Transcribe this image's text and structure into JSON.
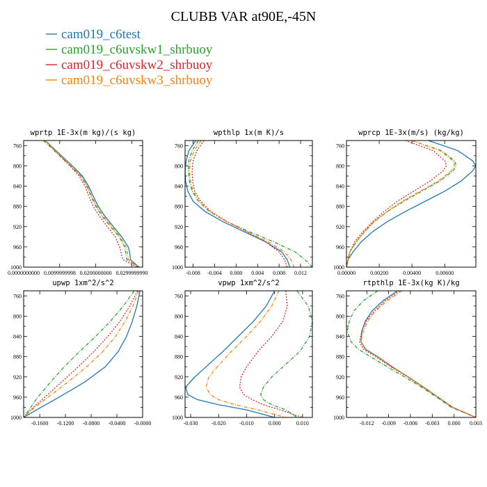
{
  "figure": {
    "title": "CLUBB VAR at90E,-45N"
  },
  "legend": [
    {
      "label": "cam019_c6test",
      "color": "#1f77b4"
    },
    {
      "label": "cam019_c6uvskw1_shrbuoy",
      "color": "#2ca02c"
    },
    {
      "label": "cam019_c6uvskw2_shrbuoy",
      "color": "#d62728"
    },
    {
      "label": "cam019_c6uvskw3_shrbuoy",
      "color": "#ff7f0e"
    }
  ],
  "chart_data": [
    {
      "type": "line",
      "title": "wprtp  1E-3x(m kg)/(s kg)",
      "xlim": [
        0.0,
        0.033
      ],
      "ylim": [
        1000,
        750
      ],
      "xticks": [
        0.0,
        0.0099999998,
        0.02,
        0.029999999
      ],
      "xtick_labels": [
        "0.0000000000",
        "0.0099999998",
        "0.0200000000",
        "0.0299999990"
      ],
      "yticks": [
        760,
        800,
        840,
        880,
        920,
        960,
        1000
      ],
      "ytick_labels": [
        "760",
        "800",
        "840",
        "880",
        "920",
        "960",
        "1000"
      ],
      "y": [
        750,
        780,
        800,
        820,
        840,
        860,
        880,
        900,
        920,
        940,
        960,
        970,
        985,
        1000
      ],
      "series": [
        {
          "name": "cam019_c6test",
          "color": "#1f77b4",
          "dash": "solid",
          "x": [
            0.006,
            0.0105,
            0.0135,
            0.0163,
            0.018,
            0.0193,
            0.0207,
            0.0226,
            0.0249,
            0.0272,
            0.029,
            0.0294,
            0.0296,
            0.032
          ]
        },
        {
          "name": "cam019_c6uvskw1_shrbuoy",
          "color": "#2ca02c",
          "dash": "dashdot",
          "x": [
            0.0055,
            0.01,
            0.013,
            0.0158,
            0.0175,
            0.0187,
            0.02,
            0.0218,
            0.0241,
            0.0265,
            0.028,
            0.0283,
            0.0286,
            0.0318
          ]
        },
        {
          "name": "cam019_c6uvskw2_shrbuoy",
          "color": "#d62728",
          "dash": "dotted",
          "x": [
            0.006,
            0.01,
            0.0128,
            0.0154,
            0.017,
            0.0181,
            0.0193,
            0.0211,
            0.0232,
            0.0254,
            0.0266,
            0.027,
            0.0275,
            0.0315
          ]
        },
        {
          "name": "cam019_c6uvskw3_shrbuoy",
          "color": "#ff7f0e",
          "dash": "dashdot",
          "x": [
            0.006,
            0.0103,
            0.0133,
            0.016,
            0.0177,
            0.0189,
            0.0203,
            0.0222,
            0.0245,
            0.0268,
            0.0284,
            0.0288,
            0.029,
            0.0319
          ]
        }
      ]
    },
    {
      "type": "line",
      "title": "wpthlp  1x(m K)/s",
      "xlim": [
        -0.0095,
        0.0142
      ],
      "ylim": [
        1000,
        750
      ],
      "xticks": [
        -0.008,
        -0.004,
        0.0,
        0.004,
        0.008,
        0.012
      ],
      "xtick_labels": [
        "-0.008",
        "-0.004",
        "0.000",
        "0.004",
        "0.008",
        "0.012"
      ],
      "yticks": [
        760,
        800,
        840,
        880,
        920,
        960,
        1000
      ],
      "ytick_labels": [
        "760",
        "800",
        "840",
        "880",
        "920",
        "960",
        "1000"
      ],
      "y": [
        750,
        770,
        790,
        810,
        830,
        850,
        870,
        890,
        910,
        930,
        950,
        970,
        985,
        1000
      ],
      "series": [
        {
          "name": "cam019_c6test",
          "color": "#1f77b4",
          "dash": "solid",
          "x": [
            -0.0075,
            -0.0088,
            -0.0093,
            -0.0095,
            -0.0094,
            -0.009,
            -0.008,
            -0.0058,
            -0.0025,
            0.0015,
            0.0055,
            0.0085,
            0.0095,
            0.01
          ]
        },
        {
          "name": "cam019_c6uvskw1_shrbuoy",
          "color": "#2ca02c",
          "dash": "dashdot",
          "x": [
            -0.007,
            -0.0082,
            -0.0088,
            -0.0089,
            -0.0087,
            -0.0082,
            -0.007,
            -0.005,
            -0.0018,
            0.0025,
            0.007,
            0.011,
            0.0128,
            0.0142
          ]
        },
        {
          "name": "cam019_c6uvskw2_shrbuoy",
          "color": "#d62728",
          "dash": "dotted",
          "x": [
            -0.006,
            -0.0073,
            -0.008,
            -0.0082,
            -0.0081,
            -0.0077,
            -0.0066,
            -0.0047,
            -0.0017,
            0.002,
            0.0055,
            0.008,
            0.009,
            0.0095
          ]
        },
        {
          "name": "cam019_c6uvskw3_shrbuoy",
          "color": "#ff7f0e",
          "dash": "dashdot",
          "x": [
            -0.0065,
            -0.0078,
            -0.0085,
            -0.0087,
            -0.0085,
            -0.008,
            -0.0069,
            -0.0049,
            -0.0018,
            0.002,
            0.006,
            0.009,
            0.0102,
            0.0108
          ]
        }
      ]
    },
    {
      "type": "line",
      "title": "wprcp  1E-3x(m/s) (kg/kg)",
      "xlim": [
        0.0,
        0.0079
      ],
      "ylim": [
        1000,
        750
      ],
      "xticks": [
        0.0,
        0.002,
        0.004,
        0.006
      ],
      "xtick_labels": [
        "0.00000",
        "0.00200",
        "0.00400",
        "0.00600"
      ],
      "yticks": [
        760,
        800,
        840,
        880,
        920,
        960,
        1000
      ],
      "ytick_labels": [
        "760",
        "800",
        "840",
        "880",
        "920",
        "960",
        "1000"
      ],
      "y": [
        750,
        770,
        790,
        800,
        810,
        830,
        850,
        870,
        890,
        910,
        930,
        950,
        970,
        985,
        1000
      ],
      "series": [
        {
          "name": "cam019_c6test",
          "color": "#1f77b4",
          "dash": "solid",
          "x": [
            0.005,
            0.0068,
            0.0077,
            0.0079,
            0.0077,
            0.007,
            0.006,
            0.0048,
            0.0036,
            0.0025,
            0.0016,
            0.0009,
            0.0004,
            0.0001,
            0.0
          ]
        },
        {
          "name": "cam019_c6uvskw1_shrbuoy",
          "color": "#2ca02c",
          "dash": "dashdot",
          "x": [
            0.004,
            0.0058,
            0.0066,
            0.0067,
            0.0065,
            0.0057,
            0.0046,
            0.0035,
            0.0025,
            0.0017,
            0.0011,
            0.0006,
            0.0002,
            0.0001,
            0.0
          ]
        },
        {
          "name": "cam019_c6uvskw2_shrbuoy",
          "color": "#d62728",
          "dash": "dotted",
          "x": [
            0.0036,
            0.0053,
            0.006,
            0.0061,
            0.0059,
            0.0051,
            0.0041,
            0.0031,
            0.0023,
            0.0016,
            0.001,
            0.0005,
            0.0002,
            0.0001,
            0.0
          ]
        },
        {
          "name": "cam019_c6uvskw3_shrbuoy",
          "color": "#ff7f0e",
          "dash": "dashdot",
          "x": [
            0.004,
            0.0057,
            0.0065,
            0.0066,
            0.0064,
            0.0056,
            0.0045,
            0.0034,
            0.0025,
            0.0017,
            0.0011,
            0.0006,
            0.0002,
            0.0001,
            0.0
          ]
        }
      ]
    },
    {
      "type": "line",
      "title": "upwp  1xm^2/s^2",
      "xlim": [
        -0.185,
        0.0
      ],
      "ylim": [
        1000,
        750
      ],
      "xticks": [
        -0.16,
        -0.12,
        -0.08,
        -0.04,
        0.0
      ],
      "xtick_labels": [
        "-0.1600",
        "-0.1200",
        "-0.0800",
        "-0.0400",
        "-0.0000"
      ],
      "yticks": [
        760,
        800,
        840,
        880,
        920,
        960,
        1000
      ],
      "ytick_labels": [
        "760",
        "800",
        "840",
        "880",
        "920",
        "960",
        "1000"
      ],
      "y": [
        750,
        780,
        810,
        840,
        870,
        900,
        930,
        960,
        980,
        1000
      ],
      "series": [
        {
          "name": "cam019_c6test",
          "color": "#1f77b4",
          "dash": "solid",
          "x": [
            -0.004,
            -0.009,
            -0.016,
            -0.025,
            -0.038,
            -0.058,
            -0.09,
            -0.13,
            -0.158,
            -0.185
          ]
        },
        {
          "name": "cam019_c6uvskw1_shrbuoy",
          "color": "#2ca02c",
          "dash": "dashdot",
          "x": [
            -0.013,
            -0.03,
            -0.05,
            -0.073,
            -0.098,
            -0.122,
            -0.143,
            -0.163,
            -0.174,
            -0.185
          ]
        },
        {
          "name": "cam019_c6uvskw2_shrbuoy",
          "color": "#d62728",
          "dash": "dotted",
          "x": [
            -0.008,
            -0.02,
            -0.035,
            -0.054,
            -0.076,
            -0.1,
            -0.126,
            -0.152,
            -0.17,
            -0.185
          ]
        },
        {
          "name": "cam019_c6uvskw3_shrbuoy",
          "color": "#ff7f0e",
          "dash": "dashdot",
          "x": [
            -0.006,
            -0.015,
            -0.027,
            -0.042,
            -0.062,
            -0.087,
            -0.116,
            -0.147,
            -0.168,
            -0.185
          ]
        }
      ]
    },
    {
      "type": "line",
      "title": "vpwp  1xm^2/s^2",
      "xlim": [
        -0.032,
        0.0135
      ],
      "ylim": [
        1000,
        750
      ],
      "xticks": [
        -0.03,
        -0.02,
        -0.01,
        0.0,
        0.01
      ],
      "xtick_labels": [
        "-0.030",
        "-0.020",
        "-0.010",
        "0.000",
        "0.010"
      ],
      "yticks": [
        760,
        800,
        840,
        880,
        920,
        960,
        1000
      ],
      "ytick_labels": [
        "760",
        "800",
        "840",
        "880",
        "920",
        "960",
        "1000"
      ],
      "y": [
        750,
        780,
        810,
        840,
        870,
        900,
        920,
        940,
        955,
        965,
        975,
        985,
        1000
      ],
      "series": [
        {
          "name": "cam019_c6test",
          "color": "#1f77b4",
          "dash": "solid",
          "x": [
            0.0,
            -0.003,
            -0.0075,
            -0.013,
            -0.0185,
            -0.0245,
            -0.0285,
            -0.0318,
            -0.031,
            -0.0275,
            -0.02,
            -0.01,
            0.0
          ]
        },
        {
          "name": "cam019_c6uvskw1_shrbuoy",
          "color": "#2ca02c",
          "dash": "dashdot",
          "x": [
            0.008,
            0.012,
            0.0135,
            0.0125,
            0.009,
            0.003,
            -0.001,
            -0.004,
            -0.005,
            -0.004,
            -0.001,
            0.004,
            0.008
          ]
        },
        {
          "name": "cam019_c6uvskw2_shrbuoy",
          "color": "#d62728",
          "dash": "dotted",
          "x": [
            0.004,
            0.0045,
            0.003,
            -0.001,
            -0.006,
            -0.01,
            -0.012,
            -0.0125,
            -0.011,
            -0.008,
            -0.004,
            0.002,
            0.01
          ]
        },
        {
          "name": "cam019_c6uvskw3_shrbuoy",
          "color": "#ff7f0e",
          "dash": "dashdot",
          "x": [
            0.0015,
            -0.001,
            -0.005,
            -0.01,
            -0.0155,
            -0.0205,
            -0.0235,
            -0.0245,
            -0.023,
            -0.02,
            -0.014,
            -0.006,
            0.004
          ]
        }
      ]
    },
    {
      "type": "line",
      "title": "rtpthlp  1E-3x(kg K)/kg",
      "xlim": [
        -0.0148,
        0.003
      ],
      "ylim": [
        1000,
        750
      ],
      "xticks": [
        -0.012,
        -0.009,
        -0.006,
        -0.003,
        0.0,
        0.003
      ],
      "xtick_labels": [
        "-0.012",
        "-0.009",
        "-0.006",
        "-0.003",
        "0.000",
        "0.003"
      ],
      "yticks": [
        760,
        800,
        840,
        880,
        920,
        960,
        1000
      ],
      "ytick_labels": [
        "760",
        "800",
        "840",
        "880",
        "920",
        "960",
        "1000"
      ],
      "y": [
        750,
        770,
        790,
        810,
        830,
        850,
        865,
        880,
        900,
        920,
        940,
        960,
        980,
        1000
      ],
      "series": [
        {
          "name": "cam019_c6test",
          "color": "#1f77b4",
          "dash": "solid",
          "x": [
            -0.0078,
            -0.0098,
            -0.0113,
            -0.0122,
            -0.0127,
            -0.0128,
            -0.0122,
            -0.0105,
            -0.0085,
            -0.0063,
            -0.0042,
            -0.0022,
            -0.0002,
            0.003
          ]
        },
        {
          "name": "cam019_c6uvskw1_shrbuoy",
          "color": "#2ca02c",
          "dash": "dashdot",
          "x": [
            -0.0105,
            -0.0125,
            -0.0138,
            -0.0144,
            -0.0147,
            -0.0142,
            -0.0132,
            -0.0115,
            -0.0092,
            -0.0068,
            -0.0045,
            -0.0024,
            -0.0004,
            0.003
          ]
        },
        {
          "name": "cam019_c6uvskw2_shrbuoy",
          "color": "#d62728",
          "dash": "dotted",
          "x": [
            -0.0075,
            -0.0095,
            -0.011,
            -0.0121,
            -0.0127,
            -0.013,
            -0.0125,
            -0.0108,
            -0.0087,
            -0.0064,
            -0.0043,
            -0.0022,
            -0.0002,
            0.003
          ]
        },
        {
          "name": "cam019_c6uvskw3_shrbuoy",
          "color": "#ff7f0e",
          "dash": "dashdot",
          "x": [
            -0.0072,
            -0.0092,
            -0.0108,
            -0.0119,
            -0.0125,
            -0.0128,
            -0.0123,
            -0.0106,
            -0.0086,
            -0.0063,
            -0.0042,
            -0.0022,
            -0.0002,
            0.003
          ]
        }
      ]
    }
  ]
}
